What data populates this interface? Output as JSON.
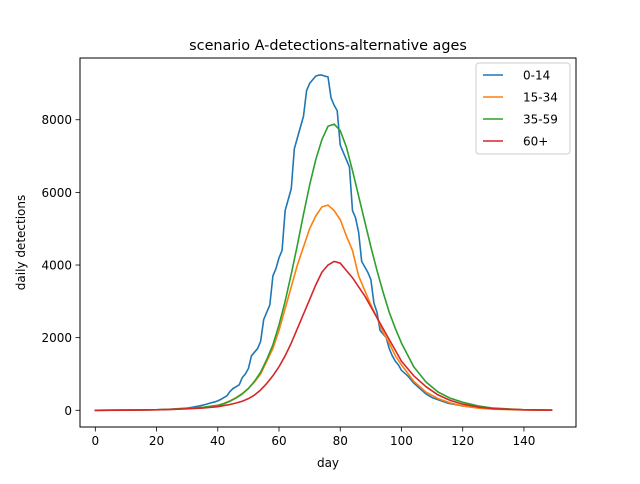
{
  "chart_data": {
    "type": "line",
    "title": "scenario A-detections-alternative ages",
    "xlabel": "day",
    "ylabel": "daily detections",
    "xlim": [
      -5,
      157
    ],
    "ylim": [
      -460,
      9700
    ],
    "grid": false,
    "legend_position": "top-right",
    "xticks": [
      0,
      20,
      40,
      60,
      80,
      100,
      120,
      140
    ],
    "yticks": [
      0,
      2000,
      4000,
      6000,
      8000
    ],
    "series": [
      {
        "name": "0-14",
        "color": "#1f77b4",
        "x": [
          0,
          10,
          20,
          25,
          30,
          32,
          34,
          36,
          38,
          39,
          40,
          41,
          42,
          43,
          44,
          45,
          46,
          47,
          48,
          49,
          50,
          51,
          52,
          53,
          54,
          55,
          56,
          57,
          58,
          59,
          60,
          61,
          62,
          63,
          64,
          65,
          66,
          67,
          68,
          69,
          70,
          71,
          72,
          73,
          74,
          75,
          76,
          77,
          78,
          79,
          80,
          81,
          82,
          83,
          84,
          85,
          86,
          87,
          88,
          89,
          90,
          91,
          92,
          93,
          94,
          95,
          96,
          97,
          98,
          99,
          100,
          102,
          104,
          106,
          108,
          110,
          115,
          120,
          125,
          130,
          140,
          149
        ],
        "y": [
          0,
          5,
          15,
          30,
          60,
          90,
          120,
          160,
          210,
          230,
          260,
          300,
          350,
          400,
          520,
          600,
          650,
          700,
          900,
          1000,
          1150,
          1500,
          1600,
          1700,
          1900,
          2500,
          2700,
          2900,
          3700,
          3900,
          4200,
          4400,
          5500,
          5800,
          6100,
          7200,
          7500,
          7800,
          8100,
          8800,
          9000,
          9100,
          9200,
          9230,
          9230,
          9200,
          9180,
          8600,
          8400,
          8250,
          7300,
          7100,
          6900,
          6700,
          5500,
          5300,
          4900,
          4100,
          3950,
          3800,
          3600,
          2950,
          2700,
          2200,
          2100,
          2000,
          1700,
          1500,
          1350,
          1250,
          1100,
          950,
          750,
          600,
          450,
          350,
          200,
          120,
          70,
          40,
          15,
          5
        ]
      },
      {
        "name": "15-34",
        "color": "#ff7f0e",
        "x": [
          0,
          10,
          20,
          25,
          30,
          35,
          40,
          42,
          44,
          46,
          48,
          50,
          52,
          54,
          56,
          58,
          60,
          62,
          64,
          66,
          68,
          70,
          72,
          74,
          76,
          78,
          80,
          82,
          84,
          86,
          88,
          90,
          92,
          94,
          96,
          98,
          100,
          104,
          108,
          112,
          116,
          120,
          125,
          130,
          140,
          149
        ],
        "y": [
          0,
          5,
          15,
          30,
          50,
          80,
          140,
          190,
          260,
          350,
          460,
          600,
          780,
          1000,
          1350,
          1700,
          2200,
          2800,
          3400,
          4000,
          4500,
          5000,
          5350,
          5600,
          5650,
          5500,
          5250,
          4800,
          4400,
          3700,
          3300,
          2900,
          2550,
          2150,
          1850,
          1500,
          1250,
          800,
          500,
          320,
          200,
          120,
          60,
          30,
          10,
          3
        ]
      },
      {
        "name": "35-59",
        "color": "#2ca02c",
        "x": [
          0,
          10,
          20,
          25,
          30,
          35,
          40,
          42,
          44,
          46,
          48,
          50,
          52,
          54,
          56,
          58,
          60,
          62,
          64,
          66,
          68,
          70,
          72,
          74,
          76,
          78,
          80,
          82,
          84,
          86,
          88,
          90,
          92,
          94,
          96,
          98,
          100,
          104,
          108,
          112,
          116,
          120,
          125,
          130,
          140,
          149
        ],
        "y": [
          0,
          5,
          15,
          30,
          50,
          80,
          130,
          180,
          250,
          340,
          450,
          600,
          800,
          1050,
          1400,
          1800,
          2350,
          3000,
          3750,
          4550,
          5400,
          6200,
          6900,
          7450,
          7820,
          7880,
          7700,
          7250,
          6600,
          5900,
          5200,
          4500,
          3850,
          3250,
          2700,
          2250,
          1850,
          1200,
          780,
          500,
          330,
          220,
          120,
          60,
          15,
          4
        ]
      },
      {
        "name": "60+",
        "color": "#d62728",
        "x": [
          0,
          10,
          20,
          25,
          30,
          35,
          40,
          42,
          44,
          46,
          48,
          50,
          52,
          54,
          56,
          58,
          60,
          62,
          64,
          66,
          68,
          70,
          72,
          74,
          76,
          78,
          80,
          82,
          84,
          86,
          88,
          90,
          92,
          94,
          96,
          98,
          100,
          104,
          108,
          112,
          116,
          120,
          125,
          130,
          140,
          149
        ],
        "y": [
          0,
          4,
          12,
          25,
          40,
          60,
          100,
          130,
          160,
          200,
          250,
          320,
          420,
          560,
          740,
          950,
          1200,
          1500,
          1850,
          2250,
          2650,
          3050,
          3450,
          3800,
          4000,
          4100,
          4050,
          3850,
          3650,
          3400,
          3150,
          2850,
          2550,
          2250,
          1950,
          1650,
          1350,
          950,
          650,
          420,
          270,
          170,
          90,
          45,
          12,
          3
        ]
      }
    ]
  }
}
